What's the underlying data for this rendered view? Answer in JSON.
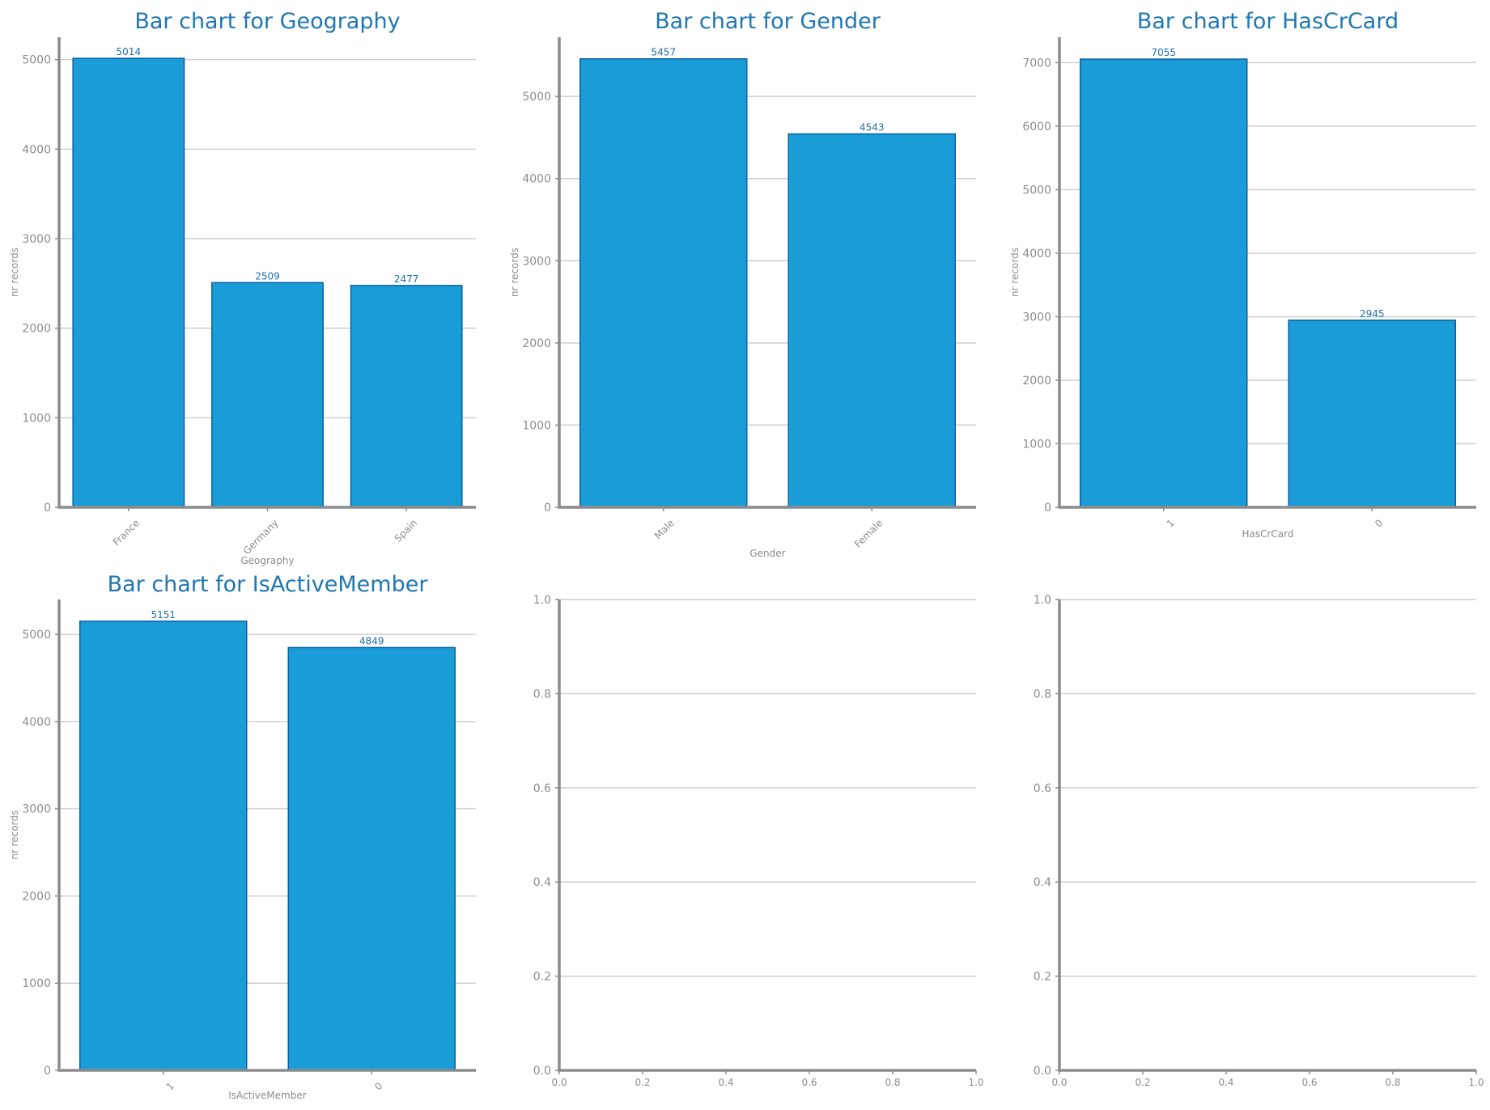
{
  "colors": {
    "bar_fill": "#1a9dd6",
    "bar_edge": "#0b5fa5",
    "title": "#1f77b4",
    "grid": "#cfcfcf",
    "axis": "#8c8c8c",
    "value_label": "#1f6fae"
  },
  "chart_data": [
    {
      "type": "bar",
      "title": "Bar chart for Geography",
      "xlabel": "Geography",
      "ylabel": "nr records",
      "categories": [
        "France",
        "Germany",
        "Spain"
      ],
      "values": [
        5014,
        2509,
        2477
      ],
      "value_labels": [
        "5014",
        "2509",
        "2477"
      ],
      "ylim": [
        0,
        5250
      ],
      "yticks": [
        0,
        1000,
        2000,
        3000,
        4000,
        5000
      ],
      "ytick_labels": [
        "0",
        "1000",
        "2000",
        "3000",
        "4000",
        "5000"
      ],
      "grid": true
    },
    {
      "type": "bar",
      "title": "Bar chart for Gender",
      "xlabel": "Gender",
      "ylabel": "nr records",
      "categories": [
        "Male",
        "Female"
      ],
      "values": [
        5457,
        4543
      ],
      "value_labels": [
        "5457",
        "4543"
      ],
      "ylim": [
        0,
        5720
      ],
      "yticks": [
        0,
        1000,
        2000,
        3000,
        4000,
        5000
      ],
      "ytick_labels": [
        "0",
        "1000",
        "2000",
        "3000",
        "4000",
        "5000"
      ],
      "grid": true
    },
    {
      "type": "bar",
      "title": "Bar chart for HasCrCard",
      "xlabel": "HasCrCard",
      "ylabel": "nr records",
      "categories": [
        "1",
        "0"
      ],
      "values": [
        7055,
        2945
      ],
      "value_labels": [
        "7055",
        "2945"
      ],
      "ylim": [
        0,
        7400
      ],
      "yticks": [
        0,
        1000,
        2000,
        3000,
        4000,
        5000,
        6000,
        7000
      ],
      "ytick_labels": [
        "0",
        "1000",
        "2000",
        "3000",
        "4000",
        "5000",
        "6000",
        "7000"
      ],
      "grid": true
    },
    {
      "type": "bar",
      "title": "Bar chart for IsActiveMember",
      "xlabel": "IsActiveMember",
      "ylabel": "nr records",
      "categories": [
        "1",
        "0"
      ],
      "values": [
        5151,
        4849
      ],
      "value_labels": [
        "5151",
        "4849"
      ],
      "ylim": [
        0,
        5400
      ],
      "yticks": [
        0,
        1000,
        2000,
        3000,
        4000,
        5000
      ],
      "ytick_labels": [
        "0",
        "1000",
        "2000",
        "3000",
        "4000",
        "5000"
      ],
      "grid": true
    },
    {
      "type": "bar",
      "title": "",
      "xlabel": "",
      "ylabel": "",
      "categories": [],
      "values": [],
      "value_labels": [],
      "ylim": [
        0,
        1
      ],
      "xlim": [
        0,
        1
      ],
      "yticks": [
        0,
        0.2,
        0.4,
        0.6,
        0.8,
        1.0
      ],
      "ytick_labels": [
        "0.0",
        "0.2",
        "0.4",
        "0.6",
        "0.8",
        "1.0"
      ],
      "xticks": [
        0,
        0.2,
        0.4,
        0.6,
        0.8,
        1.0
      ],
      "xtick_labels": [
        "0.0",
        "0.2",
        "0.4",
        "0.6",
        "0.8",
        "1.0"
      ],
      "grid": true
    },
    {
      "type": "bar",
      "title": "",
      "xlabel": "",
      "ylabel": "",
      "categories": [],
      "values": [],
      "value_labels": [],
      "ylim": [
        0,
        1
      ],
      "xlim": [
        0,
        1
      ],
      "yticks": [
        0,
        0.2,
        0.4,
        0.6,
        0.8,
        1.0
      ],
      "ytick_labels": [
        "0.0",
        "0.2",
        "0.4",
        "0.6",
        "0.8",
        "1.0"
      ],
      "xticks": [
        0,
        0.2,
        0.4,
        0.6,
        0.8,
        1.0
      ],
      "xtick_labels": [
        "0.0",
        "0.2",
        "0.4",
        "0.6",
        "0.8",
        "1.0"
      ],
      "grid": true
    }
  ]
}
